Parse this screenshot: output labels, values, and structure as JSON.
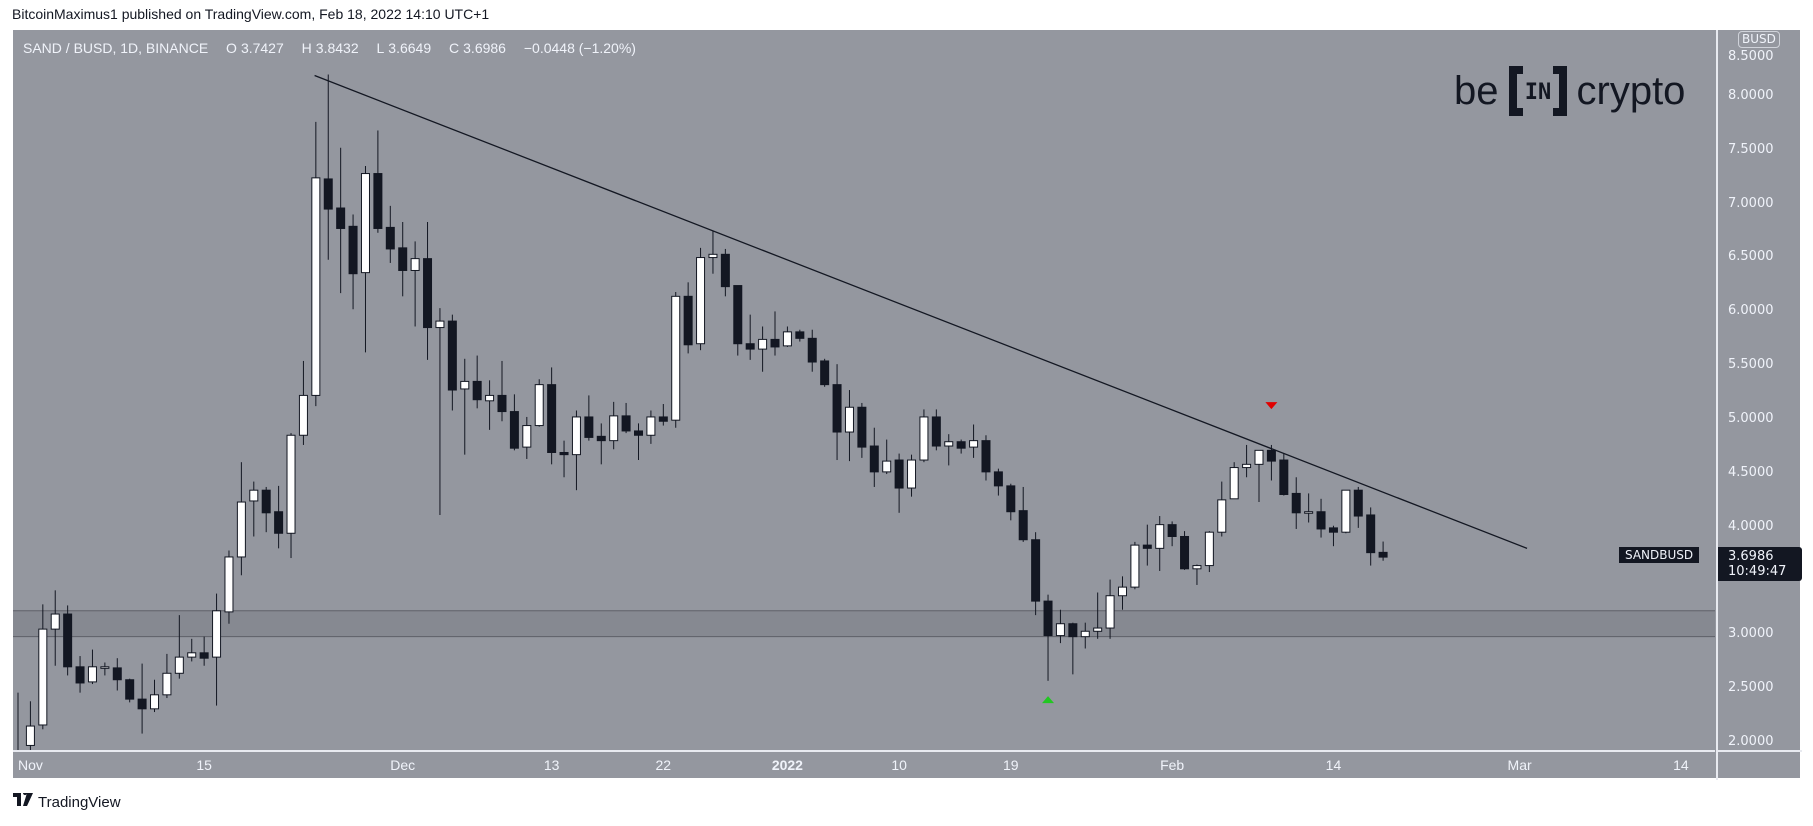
{
  "published": "BitcoinMaximus1 published on TradingView.com, Feb 18, 2022 14:10 UTC+1",
  "header": {
    "symbol": "SAND / BUSD, 1D, BINANCE",
    "open_label": "O",
    "open": "3.7427",
    "high_label": "H",
    "high": "3.8432",
    "low_label": "L",
    "low": "3.6649",
    "close_label": "C",
    "close": "3.6986",
    "change": "−0.0448 (−1.20%)"
  },
  "logo": {
    "left": "be",
    "middle": "IN",
    "right": "crypto"
  },
  "price_axis": {
    "currency": "BUSD",
    "last_price": "3.6986",
    "countdown": "10:49:47",
    "symbol_tag": "SANDBUSD"
  },
  "footer": {
    "brand": "TradingView",
    "brand_mark": "17"
  },
  "colors": {
    "background": "#94979f",
    "up": "#ffffff",
    "down": "#131722",
    "support_zone": "#868991",
    "trendline": "#131722",
    "marker_up": "#22c722",
    "marker_down": "#e00000"
  },
  "chart_data": {
    "type": "candlestick",
    "title": "SAND / BUSD, 1D, BINANCE",
    "start_date": "2021-10-31",
    "interval": "1D",
    "ylim": [
      1.93,
      8.62
    ],
    "xlim_days": [
      -0.6,
      136.5
    ],
    "y_ticks": [
      "8.5000",
      "8.0000",
      "7.5000",
      "7.0000",
      "6.5000",
      "6.0000",
      "5.5000",
      "5.0000",
      "4.5000",
      "4.0000",
      "3.0000",
      "2.5000",
      "2.0000"
    ],
    "x_ticks": [
      {
        "label": "Nov",
        "day": 1
      },
      {
        "label": "15",
        "day": 15
      },
      {
        "label": "Dec",
        "day": 31
      },
      {
        "label": "13",
        "day": 43
      },
      {
        "label": "22",
        "day": 52
      },
      {
        "label": "2022",
        "day": 62,
        "bold": true
      },
      {
        "label": "10",
        "day": 71
      },
      {
        "label": "19",
        "day": 80
      },
      {
        "label": "Feb",
        "day": 93
      },
      {
        "label": "14",
        "day": 106
      },
      {
        "label": "Mar",
        "day": 121
      },
      {
        "label": "14",
        "day": 134
      }
    ],
    "ohlc_columns": [
      "open",
      "high",
      "low",
      "close"
    ],
    "candles": [
      [
        1.85,
        2.44,
        1.8,
        1.9
      ],
      [
        1.95,
        2.36,
        1.9,
        2.13
      ],
      [
        2.14,
        3.26,
        2.1,
        3.03
      ],
      [
        3.03,
        3.39,
        2.69,
        3.17
      ],
      [
        3.17,
        3.25,
        2.6,
        2.68
      ],
      [
        2.68,
        2.78,
        2.44,
        2.53
      ],
      [
        2.54,
        2.84,
        2.52,
        2.68
      ],
      [
        2.68,
        2.72,
        2.6,
        2.68
      ],
      [
        2.67,
        2.76,
        2.46,
        2.56
      ],
      [
        2.56,
        2.57,
        2.35,
        2.38
      ],
      [
        2.38,
        2.71,
        2.06,
        2.29
      ],
      [
        2.29,
        2.56,
        2.26,
        2.42
      ],
      [
        2.42,
        2.8,
        2.39,
        2.62
      ],
      [
        2.62,
        3.16,
        2.57,
        2.77
      ],
      [
        2.77,
        2.94,
        2.73,
        2.81
      ],
      [
        2.81,
        2.96,
        2.69,
        2.76
      ],
      [
        2.77,
        3.36,
        2.32,
        3.2
      ],
      [
        3.19,
        3.76,
        3.08,
        3.7
      ],
      [
        3.7,
        4.58,
        3.53,
        4.21
      ],
      [
        4.22,
        4.4,
        3.89,
        4.32
      ],
      [
        4.32,
        4.35,
        3.93,
        4.11
      ],
      [
        4.12,
        4.36,
        3.78,
        3.92
      ],
      [
        3.92,
        4.85,
        3.69,
        4.83
      ],
      [
        4.83,
        5.52,
        4.74,
        5.2
      ],
      [
        5.2,
        7.74,
        5.1,
        7.22
      ],
      [
        7.21,
        8.18,
        6.46,
        6.93
      ],
      [
        6.94,
        7.5,
        6.15,
        6.75
      ],
      [
        6.77,
        6.88,
        6.0,
        6.33
      ],
      [
        6.34,
        7.33,
        5.6,
        7.26
      ],
      [
        7.26,
        7.66,
        6.71,
        6.75
      ],
      [
        6.76,
        6.96,
        6.43,
        6.56
      ],
      [
        6.57,
        6.81,
        6.12,
        6.36
      ],
      [
        6.36,
        6.63,
        5.84,
        6.47
      ],
      [
        6.47,
        6.81,
        5.53,
        5.83
      ],
      [
        5.83,
        6.01,
        4.09,
        5.89
      ],
      [
        5.89,
        5.95,
        5.06,
        5.25
      ],
      [
        5.26,
        5.54,
        4.65,
        5.33
      ],
      [
        5.33,
        5.57,
        5.08,
        5.16
      ],
      [
        5.15,
        5.34,
        4.88,
        5.2
      ],
      [
        5.2,
        5.52,
        4.96,
        5.05
      ],
      [
        5.05,
        5.21,
        4.69,
        4.71
      ],
      [
        4.72,
        5.0,
        4.61,
        4.92
      ],
      [
        4.92,
        5.35,
        4.91,
        5.3
      ],
      [
        5.3,
        5.46,
        4.56,
        4.67
      ],
      [
        4.67,
        4.78,
        4.44,
        4.65
      ],
      [
        4.65,
        5.06,
        4.32,
        5.0
      ],
      [
        5.0,
        5.2,
        4.78,
        4.81
      ],
      [
        4.82,
        4.94,
        4.56,
        4.78
      ],
      [
        4.78,
        5.14,
        4.7,
        5.01
      ],
      [
        5.01,
        5.13,
        4.85,
        4.87
      ],
      [
        4.87,
        4.94,
        4.6,
        4.83
      ],
      [
        4.83,
        5.06,
        4.75,
        5.0
      ],
      [
        5.0,
        5.12,
        4.92,
        4.96
      ],
      [
        4.97,
        6.16,
        4.9,
        6.12
      ],
      [
        6.12,
        6.25,
        5.59,
        5.67
      ],
      [
        5.68,
        6.57,
        5.62,
        6.48
      ],
      [
        6.48,
        6.73,
        6.33,
        6.51
      ],
      [
        6.51,
        6.56,
        6.12,
        6.21
      ],
      [
        6.22,
        6.22,
        5.57,
        5.68
      ],
      [
        5.68,
        5.95,
        5.53,
        5.63
      ],
      [
        5.63,
        5.84,
        5.42,
        5.72
      ],
      [
        5.72,
        5.98,
        5.57,
        5.65
      ],
      [
        5.66,
        5.84,
        5.65,
        5.79
      ],
      [
        5.79,
        5.81,
        5.7,
        5.73
      ],
      [
        5.73,
        5.81,
        5.42,
        5.51
      ],
      [
        5.52,
        5.54,
        5.28,
        5.3
      ],
      [
        5.3,
        5.49,
        4.6,
        4.86
      ],
      [
        4.86,
        5.25,
        4.59,
        5.09
      ],
      [
        5.09,
        5.13,
        4.62,
        4.72
      ],
      [
        4.73,
        4.9,
        4.35,
        4.49
      ],
      [
        4.49,
        4.79,
        4.47,
        4.59
      ],
      [
        4.6,
        4.66,
        4.11,
        4.34
      ],
      [
        4.34,
        4.65,
        4.26,
        4.6
      ],
      [
        4.6,
        5.07,
        4.58,
        5.0
      ],
      [
        5.0,
        5.07,
        4.69,
        4.73
      ],
      [
        4.73,
        4.84,
        4.55,
        4.77
      ],
      [
        4.77,
        4.79,
        4.66,
        4.71
      ],
      [
        4.72,
        4.93,
        4.62,
        4.78
      ],
      [
        4.78,
        4.83,
        4.41,
        4.49
      ],
      [
        4.49,
        4.52,
        4.27,
        4.36
      ],
      [
        4.36,
        4.38,
        4.04,
        4.12
      ],
      [
        4.13,
        4.35,
        3.84,
        3.86
      ],
      [
        3.86,
        3.93,
        3.16,
        3.29
      ],
      [
        3.29,
        3.35,
        2.55,
        2.97
      ],
      [
        2.97,
        3.21,
        2.9,
        3.08
      ],
      [
        3.08,
        3.09,
        2.61,
        2.96
      ],
      [
        2.96,
        3.09,
        2.85,
        3.01
      ],
      [
        3.01,
        3.37,
        2.94,
        3.04
      ],
      [
        3.04,
        3.49,
        2.94,
        3.34
      ],
      [
        3.34,
        3.52,
        3.21,
        3.42
      ],
      [
        3.42,
        3.84,
        3.4,
        3.81
      ],
      [
        3.81,
        4.0,
        3.62,
        3.78
      ],
      [
        3.78,
        4.08,
        3.57,
        4.0
      ],
      [
        4.0,
        4.03,
        3.8,
        3.89
      ],
      [
        3.89,
        3.94,
        3.58,
        3.59
      ],
      [
        3.59,
        3.63,
        3.44,
        3.62
      ],
      [
        3.62,
        3.94,
        3.56,
        3.93
      ],
      [
        3.93,
        4.4,
        3.89,
        4.23
      ],
      [
        4.24,
        4.58,
        4.24,
        4.53
      ],
      [
        4.53,
        4.74,
        4.44,
        4.56
      ],
      [
        4.56,
        4.69,
        4.21,
        4.69
      ],
      [
        4.69,
        4.74,
        4.41,
        4.59
      ],
      [
        4.6,
        4.66,
        4.27,
        4.28
      ],
      [
        4.29,
        4.44,
        3.96,
        4.11
      ],
      [
        4.11,
        4.29,
        4.02,
        4.12
      ],
      [
        4.12,
        4.24,
        3.88,
        3.96
      ],
      [
        3.97,
        3.99,
        3.8,
        3.93
      ],
      [
        3.93,
        4.32,
        3.92,
        4.32
      ],
      [
        4.32,
        4.35,
        3.97,
        4.08
      ],
      [
        4.09,
        4.16,
        3.62,
        3.74
      ],
      [
        3.7427,
        3.8432,
        3.6649,
        3.6986
      ]
    ],
    "support_zone": [
      2.96,
      3.2
    ],
    "trendline": [
      {
        "day": 23.9,
        "price": 8.17
      },
      {
        "day": 121.6,
        "price": 3.78
      }
    ],
    "markers": [
      {
        "type": "arrow-down",
        "day": 101,
        "price": 5.1,
        "color": "#e00000"
      },
      {
        "type": "arrow-up",
        "day": 83,
        "price": 2.38,
        "color": "#22c722"
      }
    ],
    "last_price": 3.6986
  }
}
